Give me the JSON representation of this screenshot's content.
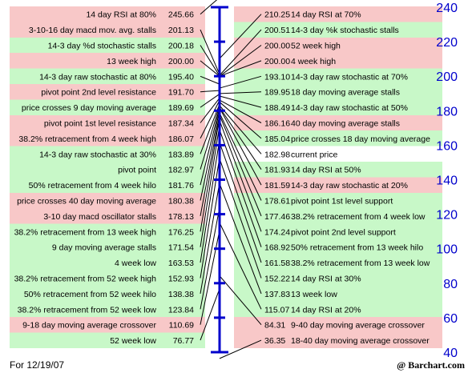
{
  "chart_data": {
    "type": "table",
    "axis": {
      "ticks": [
        240,
        220,
        200,
        180,
        160,
        140,
        120,
        100,
        80,
        60,
        40
      ],
      "range": [
        40,
        240
      ]
    },
    "left": [
      {
        "label": "14 day RSI at 80%",
        "value": "245.66",
        "tone": "red"
      },
      {
        "label": "3-10-16 day macd mov. avg. stalls",
        "value": "201.13",
        "tone": "red"
      },
      {
        "label": "14-3 day %d stochastic stalls",
        "value": "200.18",
        "tone": "green"
      },
      {
        "label": "13 week high",
        "value": "200.00",
        "tone": "red"
      },
      {
        "label": "14-3 day raw stochastic at 80%",
        "value": "195.40",
        "tone": "green"
      },
      {
        "label": "pivot point 2nd level resistance",
        "value": "191.70",
        "tone": "red"
      },
      {
        "label": "price crosses 9 day moving average",
        "value": "189.69",
        "tone": "green"
      },
      {
        "label": "pivot point 1st level resistance",
        "value": "187.34",
        "tone": "red"
      },
      {
        "label": "38.2% retracement from 4 week high",
        "value": "186.07",
        "tone": "red"
      },
      {
        "label": "14-3 day raw stochastic at 30%",
        "value": "183.89",
        "tone": "green"
      },
      {
        "label": "pivot point",
        "value": "182.97",
        "tone": "green"
      },
      {
        "label": "50% retracement from 4 week hilo",
        "value": "181.76",
        "tone": "green"
      },
      {
        "label": "price crosses 40 day moving average",
        "value": "180.38",
        "tone": "red"
      },
      {
        "label": "3-10 day macd oscillator stalls",
        "value": "178.13",
        "tone": "red"
      },
      {
        "label": "38.2% retracement from 13 week high",
        "value": "176.25",
        "tone": "green"
      },
      {
        "label": "9 day moving average stalls",
        "value": "171.54",
        "tone": "green"
      },
      {
        "label": "4 week low",
        "value": "163.53",
        "tone": "green"
      },
      {
        "label": "38.2% retracement from 52 week high",
        "value": "152.93",
        "tone": "green"
      },
      {
        "label": "50% retracement from 52 week hilo",
        "value": "138.38",
        "tone": "green"
      },
      {
        "label": "38.2% retracement from 52 week low",
        "value": "123.84",
        "tone": "green"
      },
      {
        "label": "9-18 day moving average crossover",
        "value": "110.69",
        "tone": "red"
      },
      {
        "label": "52 week low",
        "value": "76.77",
        "tone": "green"
      }
    ],
    "right": [
      {
        "label": "14 day RSI at 70%",
        "value": "210.25",
        "tone": "red"
      },
      {
        "label": "14-3 day %k stochastic stalls",
        "value": "200.51",
        "tone": "green"
      },
      {
        "label": "52 week high",
        "value": "200.00",
        "tone": "red"
      },
      {
        "label": "4 week high",
        "value": "200.00",
        "tone": "red"
      },
      {
        "label": "14-3 day raw stochastic at 70%",
        "value": "193.10",
        "tone": "green"
      },
      {
        "label": "18 day moving average stalls",
        "value": "189.95",
        "tone": "green"
      },
      {
        "label": "14-3 day raw stochastic at 50%",
        "value": "188.49",
        "tone": "green"
      },
      {
        "label": "40 day moving average stalls",
        "value": "186.16",
        "tone": "red"
      },
      {
        "label": "price crosses 18 day moving average",
        "value": "185.04",
        "tone": "green"
      },
      {
        "label": "current price",
        "value": "182.98",
        "tone": "white"
      },
      {
        "label": "14 day RSI at 50%",
        "value": "181.93",
        "tone": "green"
      },
      {
        "label": "14-3 day raw stochastic at 20%",
        "value": "181.59",
        "tone": "red"
      },
      {
        "label": "pivot point 1st level support",
        "value": "178.61",
        "tone": "green"
      },
      {
        "label": "38.2% retracement from 4 week low",
        "value": "177.46",
        "tone": "green"
      },
      {
        "label": "pivot point 2nd level support",
        "value": "174.24",
        "tone": "green"
      },
      {
        "label": "50% retracement from 13 week hilo",
        "value": "168.92",
        "tone": "green"
      },
      {
        "label": "38.2% retracement from 13 week low",
        "value": "161.58",
        "tone": "green"
      },
      {
        "label": "14 day RSI at 30%",
        "value": "152.22",
        "tone": "green"
      },
      {
        "label": "13 week low",
        "value": "137.83",
        "tone": "green"
      },
      {
        "label": "14 day RSI at 20%",
        "value": "115.07",
        "tone": "green"
      },
      {
        "label": "9-40 day moving average crossover",
        "value": "84.31",
        "tone": "red"
      },
      {
        "label": "18-40 day moving average crossover",
        "value": "36.35",
        "tone": "red"
      }
    ]
  },
  "colors": {
    "red": "#f8c8c8",
    "green": "#c8f8c8",
    "white": "#ffffff",
    "axis": "#0000cc",
    "lines": "#000000"
  },
  "footer": {
    "date": "For 12/19/07",
    "source": "@ Barchart.com"
  }
}
